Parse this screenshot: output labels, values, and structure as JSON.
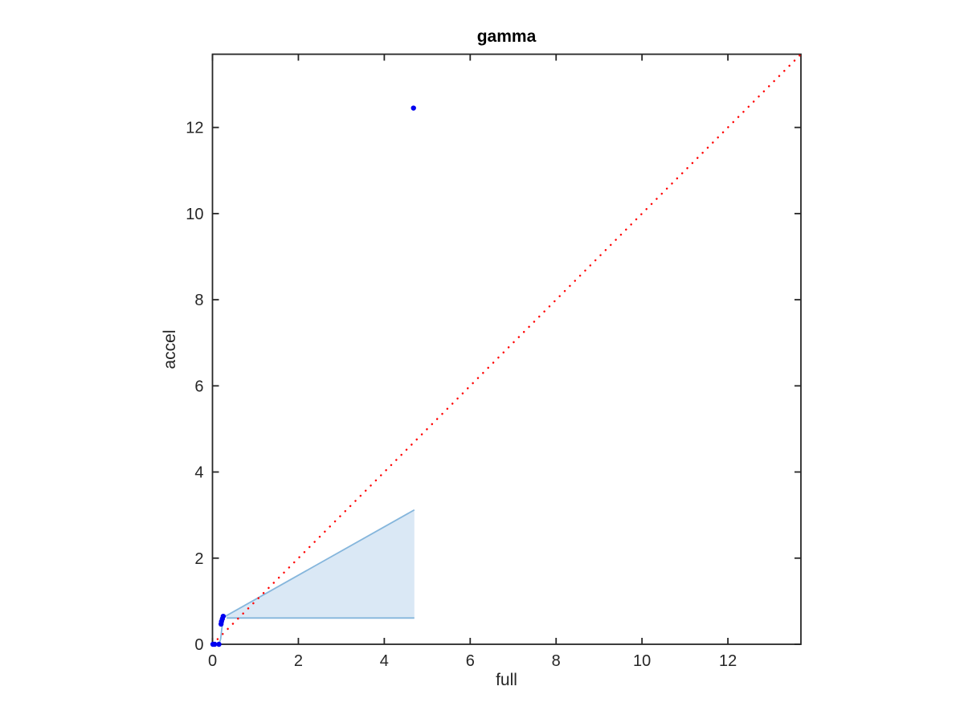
{
  "figure": {
    "title": "gamma",
    "xlabel": "full",
    "ylabel": "accel"
  },
  "chart_data": {
    "type": "scatter",
    "title": "gamma",
    "xlabel": "full",
    "ylabel": "accel",
    "xlim": [
      0,
      13.7
    ],
    "ylim": [
      0,
      13.7
    ],
    "xticks": [
      0,
      2,
      4,
      6,
      8,
      10,
      12
    ],
    "yticks": [
      0,
      2,
      4,
      6,
      8,
      10,
      12
    ],
    "grid": false,
    "box": true,
    "tick_direction": "in",
    "legend": false,
    "style": {
      "axis_color": "#262626",
      "tick_label_color": "#262626",
      "identity_color": "#ff0000",
      "marker_color": "#0000f0",
      "band_edge_color": "#85b6dc",
      "band_fill_color": "#dae8f5"
    },
    "identity_line": {
      "name": "y-equals-x-reference",
      "linestyle": "dotted",
      "points": [
        [
          0,
          0
        ],
        [
          13.7,
          13.7
        ]
      ]
    },
    "shaded_band": {
      "name": "accel-range-band",
      "polygon": [
        [
          0.33,
          0.61
        ],
        [
          0.3,
          0.65
        ],
        [
          4.7,
          3.12
        ],
        [
          4.7,
          0.61
        ]
      ],
      "upper_edge": [
        [
          0.3,
          0.65
        ],
        [
          4.7,
          3.12
        ]
      ],
      "lower_edge": [
        [
          0.33,
          0.61
        ],
        [
          4.7,
          0.61
        ]
      ]
    },
    "series": [
      {
        "name": "accel-vs-full",
        "line": [
          [
            0.01,
            0.0
          ],
          [
            0.15,
            0.0
          ],
          [
            0.19,
            0.12
          ],
          [
            0.21,
            0.3
          ],
          [
            0.23,
            0.47
          ],
          [
            0.25,
            0.65
          ]
        ],
        "markers": [
          [
            0.01,
            0.0
          ],
          [
            0.05,
            0.0
          ],
          [
            0.15,
            0.0
          ],
          [
            0.2,
            0.47
          ],
          [
            0.21,
            0.53
          ],
          [
            0.23,
            0.59
          ],
          [
            0.25,
            0.65
          ],
          [
            4.68,
            12.45
          ]
        ]
      }
    ]
  }
}
